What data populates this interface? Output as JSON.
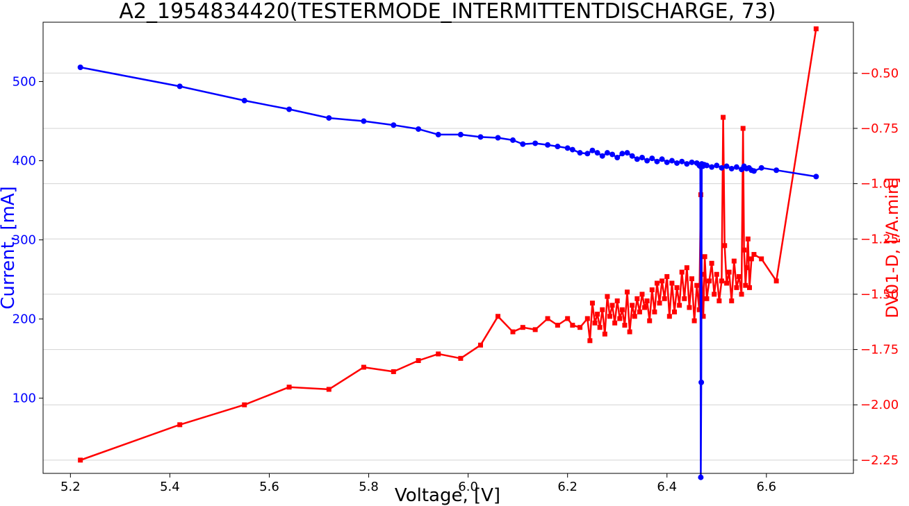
{
  "chart_data": {
    "type": "line",
    "title": "A2_1954834420(TESTERMODE_INTERMITTENTDISCHARGE, 73)",
    "xlabel": "Voltage, [V]",
    "ylabel_left": "Current, [mA]",
    "ylabel_right": "DV01-D, [/A.min]",
    "xlim": [
      5.145,
      6.775
    ],
    "ylim_left": [
      5,
      575
    ],
    "ylim_right": [
      -2.31,
      -0.27
    ],
    "xticks": [
      5.2,
      5.4,
      5.6,
      5.8,
      6.0,
      6.2,
      6.4,
      6.6
    ],
    "xtick_labels": [
      "5.2",
      "5.4",
      "5.6",
      "5.8",
      "6.0",
      "6.2",
      "6.4",
      "6.6"
    ],
    "yticks_left": [
      100,
      200,
      300,
      400,
      500
    ],
    "ytick_labels_left": [
      "100",
      "200",
      "300",
      "400",
      "500"
    ],
    "yticks_right": [
      -2.25,
      -2.0,
      -1.75,
      -1.5,
      -1.25,
      -1.0,
      -0.75,
      -0.5
    ],
    "ytick_labels_right": [
      "−2.25",
      "−2.00",
      "−1.75",
      "−1.50",
      "−1.25",
      "−1.00",
      "−0.75",
      "−0.50"
    ],
    "grid": "horizontal",
    "series": [
      {
        "axis": "left",
        "color": "#0000ff",
        "marker": "circle",
        "x": [
          5.22,
          5.42,
          5.55,
          5.64,
          5.72,
          5.79,
          5.85,
          5.9,
          5.94,
          5.985,
          6.025,
          6.06,
          6.09,
          6.11,
          6.135,
          6.16,
          6.18,
          6.2,
          6.21,
          6.225,
          6.24,
          6.25,
          6.26,
          6.27,
          6.28,
          6.29,
          6.3,
          6.31,
          6.32,
          6.33,
          6.34,
          6.35,
          6.36,
          6.37,
          6.38,
          6.39,
          6.4,
          6.41,
          6.42,
          6.43,
          6.44,
          6.45,
          6.46,
          6.465,
          6.467,
          6.468,
          6.469,
          6.47,
          6.472,
          6.475,
          6.48,
          6.49,
          6.5,
          6.51,
          6.52,
          6.53,
          6.54,
          6.55,
          6.555,
          6.56,
          6.565,
          6.57,
          6.575,
          6.59,
          6.62,
          6.7
        ],
        "y": [
          518,
          494,
          476,
          465,
          454,
          450,
          445,
          440,
          433,
          433,
          430,
          429,
          426,
          421,
          422,
          420,
          418,
          416,
          414,
          410,
          409,
          413,
          410,
          406,
          410,
          408,
          404,
          409,
          410,
          406,
          402,
          404,
          400,
          403,
          399,
          402,
          398,
          400,
          397,
          399,
          396,
          398,
          397,
          394,
          393,
          0,
          120,
          396,
          393,
          395,
          394,
          392,
          394,
          391,
          393,
          390,
          392,
          389,
          393,
          390,
          391,
          388,
          387,
          391,
          388,
          380
        ]
      },
      {
        "axis": "right",
        "color": "#ff0000",
        "marker": "square",
        "x": [
          5.22,
          5.42,
          5.55,
          5.64,
          5.72,
          5.79,
          5.85,
          5.9,
          5.94,
          5.985,
          6.025,
          6.06,
          6.09,
          6.11,
          6.135,
          6.16,
          6.18,
          6.2,
          6.21,
          6.225,
          6.24,
          6.245,
          6.25,
          6.255,
          6.26,
          6.265,
          6.27,
          6.275,
          6.28,
          6.285,
          6.29,
          6.295,
          6.3,
          6.305,
          6.31,
          6.315,
          6.32,
          6.325,
          6.33,
          6.335,
          6.34,
          6.345,
          6.35,
          6.355,
          6.36,
          6.365,
          6.37,
          6.375,
          6.38,
          6.385,
          6.39,
          6.395,
          6.4,
          6.405,
          6.41,
          6.415,
          6.42,
          6.425,
          6.43,
          6.435,
          6.44,
          6.445,
          6.45,
          6.455,
          6.46,
          6.465,
          6.468,
          6.47,
          6.473,
          6.476,
          6.48,
          6.485,
          6.49,
          6.495,
          6.5,
          6.505,
          6.51,
          6.513,
          6.516,
          6.52,
          6.525,
          6.53,
          6.535,
          6.54,
          6.545,
          6.55,
          6.553,
          6.555,
          6.558,
          6.56,
          6.563,
          6.566,
          6.57,
          6.575,
          6.59,
          6.62,
          6.7
        ],
        "y": [
          -2.25,
          -2.09,
          -2.0,
          -1.92,
          -1.93,
          -1.83,
          -1.85,
          -1.8,
          -1.77,
          -1.79,
          -1.73,
          -1.6,
          -1.67,
          -1.65,
          -1.66,
          -1.61,
          -1.64,
          -1.61,
          -1.64,
          -1.65,
          -1.61,
          -1.71,
          -1.54,
          -1.63,
          -1.59,
          -1.65,
          -1.57,
          -1.68,
          -1.51,
          -1.6,
          -1.55,
          -1.63,
          -1.53,
          -1.61,
          -1.57,
          -1.64,
          -1.49,
          -1.67,
          -1.55,
          -1.6,
          -1.52,
          -1.58,
          -1.5,
          -1.56,
          -1.53,
          -1.62,
          -1.48,
          -1.58,
          -1.45,
          -1.54,
          -1.44,
          -1.52,
          -1.42,
          -1.6,
          -1.45,
          -1.58,
          -1.47,
          -1.55,
          -1.4,
          -1.52,
          -1.38,
          -1.56,
          -1.43,
          -1.62,
          -1.46,
          -1.57,
          -1.05,
          -1.41,
          -1.6,
          -1.33,
          -1.52,
          -1.44,
          -1.36,
          -1.5,
          -1.41,
          -1.53,
          -1.44,
          -0.7,
          -1.28,
          -1.45,
          -1.4,
          -1.53,
          -1.35,
          -1.47,
          -1.42,
          -1.5,
          -0.75,
          -1.3,
          -1.46,
          -1.38,
          -1.25,
          -1.47,
          -1.34,
          -1.32,
          -1.34,
          -1.44,
          -0.3
        ]
      }
    ]
  }
}
